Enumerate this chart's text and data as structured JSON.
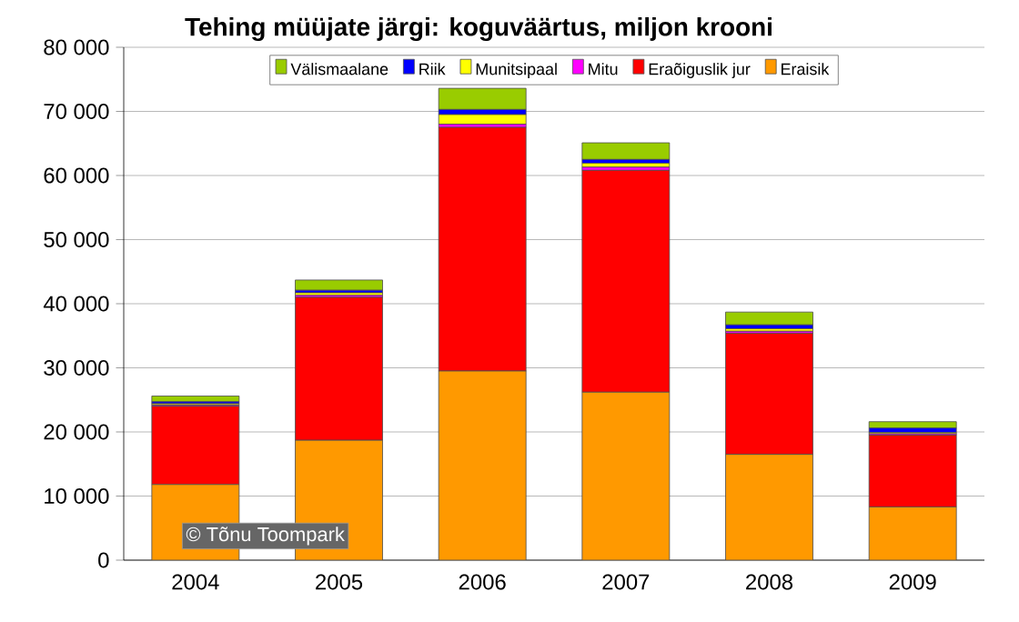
{
  "chart_data": {
    "type": "bar",
    "stacked": true,
    "title": "Tehing müüjate järgi: koguväärtus, miljon krooni",
    "categories": [
      "2004",
      "2005",
      "2006",
      "2007",
      "2008",
      "2009"
    ],
    "series": [
      {
        "name": "Eraisik",
        "color": "#ff9900",
        "values": [
          11800,
          18700,
          29500,
          26200,
          16500,
          8300
        ]
      },
      {
        "name": "Eraõiguslik jur",
        "color": "#ff0000",
        "values": [
          12200,
          22300,
          38000,
          34600,
          18900,
          11200
        ]
      },
      {
        "name": "Mitu",
        "color": "#ff00ff",
        "values": [
          200,
          300,
          500,
          500,
          300,
          200
        ]
      },
      {
        "name": "Munitsipaal",
        "color": "#ffff00",
        "values": [
          200,
          400,
          1500,
          600,
          400,
          200
        ]
      },
      {
        "name": "Riik",
        "color": "#0000ff",
        "values": [
          300,
          400,
          800,
          600,
          600,
          700
        ]
      },
      {
        "name": "Välismaalane",
        "color": "#99cc00",
        "values": [
          900,
          1600,
          3300,
          2600,
          2000,
          1000
        ]
      }
    ],
    "ylim": [
      0,
      80000
    ],
    "yticks": [
      {
        "value": 0,
        "label": "0"
      },
      {
        "value": 10000,
        "label": "10 000"
      },
      {
        "value": 20000,
        "label": "20 000"
      },
      {
        "value": 30000,
        "label": "30 000"
      },
      {
        "value": 40000,
        "label": "40 000"
      },
      {
        "value": 50000,
        "label": "50 000"
      },
      {
        "value": 60000,
        "label": "60 000"
      },
      {
        "value": 70000,
        "label": "70 000"
      },
      {
        "value": 80000,
        "label": "80 000"
      }
    ],
    "grid": "y",
    "legend": "top",
    "annotations": [
      "© Tõnu Toompark"
    ]
  }
}
